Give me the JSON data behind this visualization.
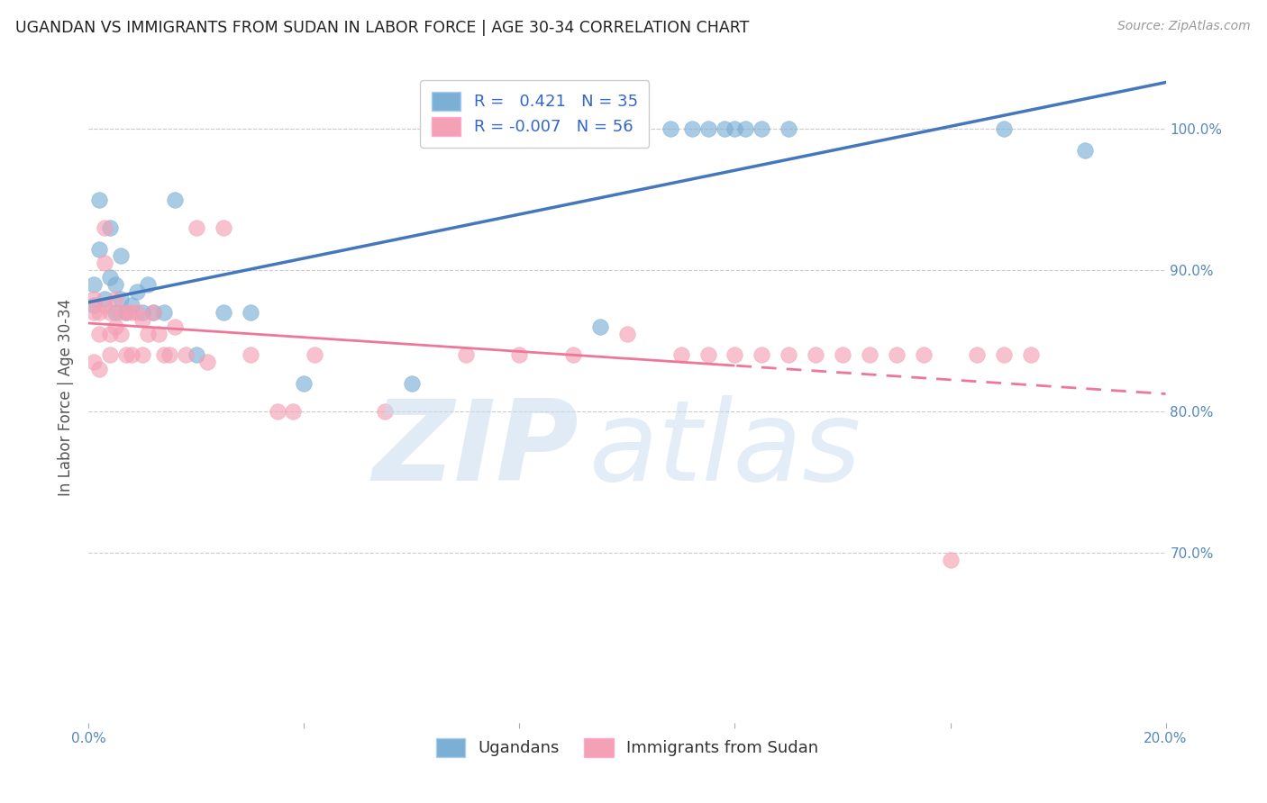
{
  "title": "UGANDAN VS IMMIGRANTS FROM SUDAN IN LABOR FORCE | AGE 30-34 CORRELATION CHART",
  "source": "Source: ZipAtlas.com",
  "ylabel": "In Labor Force | Age 30-34",
  "ugandan_R": 0.421,
  "ugandan_N": 35,
  "sudan_R": -0.007,
  "sudan_N": 56,
  "ugandan_color": "#7BAFD4",
  "sudan_color": "#F4A0B5",
  "ugandan_line_color": "#4477BB",
  "sudan_line_color": "#EE7799",
  "legend_label_1": "Ugandans",
  "legend_label_2": "Immigrants from Sudan",
  "background_color": "#FFFFFF",
  "grid_color": "#CCCCCC",
  "xlim": [
    0.0,
    0.2
  ],
  "ylim": [
    0.58,
    1.04
  ],
  "xticks": [
    0.0,
    0.04,
    0.08,
    0.12,
    0.16,
    0.2
  ],
  "xticklabels": [
    "0.0%",
    "",
    "",
    "",
    "",
    "20.0%"
  ],
  "yticks": [
    0.7,
    0.8,
    0.9,
    1.0
  ],
  "yticklabels": [
    "70.0%",
    "80.0%",
    "90.0%",
    "100.0%"
  ],
  "ugandan_x": [
    0.001,
    0.001,
    0.002,
    0.002,
    0.003,
    0.004,
    0.004,
    0.005,
    0.005,
    0.006,
    0.006,
    0.007,
    0.008,
    0.009,
    0.01,
    0.011,
    0.012,
    0.014,
    0.016,
    0.02,
    0.025,
    0.03,
    0.04,
    0.06,
    0.095,
    0.108,
    0.112,
    0.115,
    0.118,
    0.12,
    0.122,
    0.125,
    0.13,
    0.17,
    0.185
  ],
  "ugandan_y": [
    0.875,
    0.89,
    0.915,
    0.95,
    0.88,
    0.895,
    0.93,
    0.87,
    0.89,
    0.88,
    0.91,
    0.87,
    0.875,
    0.885,
    0.87,
    0.89,
    0.87,
    0.87,
    0.95,
    0.84,
    0.87,
    0.87,
    0.82,
    0.82,
    0.86,
    1.0,
    1.0,
    1.0,
    1.0,
    1.0,
    1.0,
    1.0,
    1.0,
    1.0,
    0.985
  ],
  "sudan_x": [
    0.001,
    0.001,
    0.001,
    0.002,
    0.002,
    0.002,
    0.003,
    0.003,
    0.003,
    0.004,
    0.004,
    0.004,
    0.005,
    0.005,
    0.006,
    0.006,
    0.007,
    0.007,
    0.008,
    0.008,
    0.009,
    0.01,
    0.01,
    0.011,
    0.012,
    0.013,
    0.014,
    0.015,
    0.016,
    0.018,
    0.02,
    0.022,
    0.025,
    0.03,
    0.035,
    0.038,
    0.042,
    0.055,
    0.07,
    0.08,
    0.09,
    0.1,
    0.11,
    0.115,
    0.12,
    0.125,
    0.13,
    0.135,
    0.14,
    0.145,
    0.15,
    0.155,
    0.16,
    0.165,
    0.17,
    0.175
  ],
  "sudan_y": [
    0.88,
    0.87,
    0.835,
    0.87,
    0.855,
    0.83,
    0.93,
    0.905,
    0.875,
    0.87,
    0.855,
    0.84,
    0.88,
    0.86,
    0.87,
    0.855,
    0.87,
    0.84,
    0.87,
    0.84,
    0.87,
    0.865,
    0.84,
    0.855,
    0.87,
    0.855,
    0.84,
    0.84,
    0.86,
    0.84,
    0.93,
    0.835,
    0.93,
    0.84,
    0.8,
    0.8,
    0.84,
    0.8,
    0.84,
    0.84,
    0.84,
    0.855,
    0.84,
    0.84,
    0.84,
    0.84,
    0.84,
    0.84,
    0.84,
    0.84,
    0.84,
    0.84,
    0.695,
    0.84,
    0.84,
    0.84
  ]
}
